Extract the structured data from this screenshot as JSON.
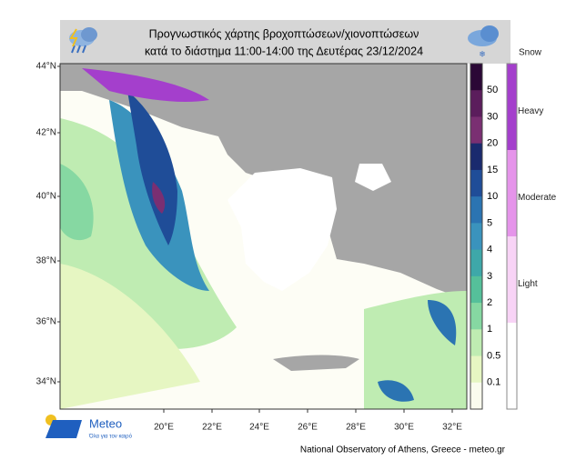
{
  "header": {
    "title_line1": "Προγνωστικός χάρτης βροχοπτώσεων/χιονοπτώσεων",
    "title_line2": "κατά το διάστημα 11:00-14:00 της Δευτέρας 23/12/2024"
  },
  "map": {
    "lat_labels": [
      "44°N",
      "42°N",
      "40°N",
      "38°N",
      "36°N",
      "34°N"
    ],
    "lon_labels": [
      "20°E",
      "22°E",
      "24°E",
      "26°E",
      "28°E",
      "30°E",
      "32°E"
    ]
  },
  "rain_legend": {
    "labels": [
      "50",
      "30",
      "20",
      "15",
      "10",
      "5",
      "4",
      "3",
      "2",
      "1",
      "0.5",
      "0.1"
    ],
    "colors": [
      "#2b0836",
      "#5b1d5c",
      "#7a2f72",
      "#1a2a6e",
      "#1f4d98",
      "#2b74b2",
      "#3a93bd",
      "#3ea8a9",
      "#55c09a",
      "#86d8a2",
      "#bfecb2",
      "#e6f6c2",
      "#fafcee"
    ]
  },
  "snow_legend": {
    "title": "Snow",
    "labels": [
      "Heavy",
      "Moderate",
      "Light"
    ],
    "colors": [
      "#a43fcc",
      "#e594ea",
      "#f8d3f6"
    ]
  },
  "logo": {
    "name": "Meteo",
    "tagline": "Όλα για τον καιρό"
  },
  "footer": {
    "credit": "National Observatory of Athens, Greece - meteo.gr"
  }
}
